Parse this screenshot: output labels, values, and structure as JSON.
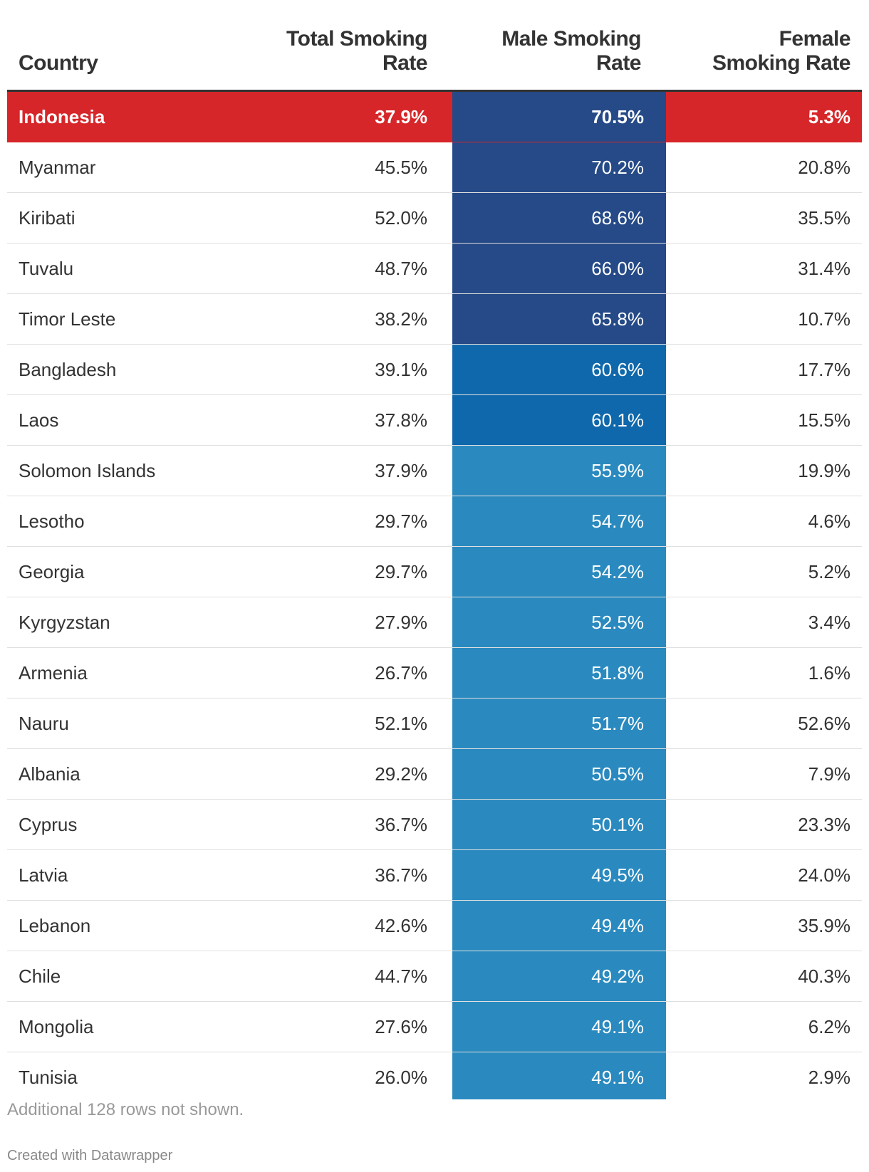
{
  "chart_data": {
    "type": "table",
    "columns": [
      "Country",
      "Total Smoking Rate",
      "Male Smoking Rate",
      "Female Smoking Rate"
    ],
    "header_lines": {
      "country": [
        "Country"
      ],
      "total": [
        "Total Smoking",
        "Rate"
      ],
      "male": [
        "Male Smoking",
        "Rate"
      ],
      "female": [
        "Female",
        "Smoking Rate"
      ]
    },
    "rows": [
      {
        "country": "Indonesia",
        "total": "37.9%",
        "male": "70.5%",
        "female": "5.3%",
        "male_value": 70.5,
        "highlight": true
      },
      {
        "country": "Myanmar",
        "total": "45.5%",
        "male": "70.2%",
        "female": "20.8%",
        "male_value": 70.2
      },
      {
        "country": "Kiribati",
        "total": "52.0%",
        "male": "68.6%",
        "female": "35.5%",
        "male_value": 68.6
      },
      {
        "country": "Tuvalu",
        "total": "48.7%",
        "male": "66.0%",
        "female": "31.4%",
        "male_value": 66.0
      },
      {
        "country": "Timor Leste",
        "total": "38.2%",
        "male": "65.8%",
        "female": "10.7%",
        "male_value": 65.8
      },
      {
        "country": "Bangladesh",
        "total": "39.1%",
        "male": "60.6%",
        "female": "17.7%",
        "male_value": 60.6
      },
      {
        "country": "Laos",
        "total": "37.8%",
        "male": "60.1%",
        "female": "15.5%",
        "male_value": 60.1
      },
      {
        "country": "Solomon Islands",
        "total": "37.9%",
        "male": "55.9%",
        "female": "19.9%",
        "male_value": 55.9
      },
      {
        "country": "Lesotho",
        "total": "29.7%",
        "male": "54.7%",
        "female": "4.6%",
        "male_value": 54.7
      },
      {
        "country": "Georgia",
        "total": "29.7%",
        "male": "54.2%",
        "female": "5.2%",
        "male_value": 54.2
      },
      {
        "country": "Kyrgyzstan",
        "total": "27.9%",
        "male": "52.5%",
        "female": "3.4%",
        "male_value": 52.5
      },
      {
        "country": "Armenia",
        "total": "26.7%",
        "male": "51.8%",
        "female": "1.6%",
        "male_value": 51.8
      },
      {
        "country": "Nauru",
        "total": "52.1%",
        "male": "51.7%",
        "female": "52.6%",
        "male_value": 51.7
      },
      {
        "country": "Albania",
        "total": "29.2%",
        "male": "50.5%",
        "female": "7.9%",
        "male_value": 50.5
      },
      {
        "country": "Cyprus",
        "total": "36.7%",
        "male": "50.1%",
        "female": "23.3%",
        "male_value": 50.1
      },
      {
        "country": "Latvia",
        "total": "36.7%",
        "male": "49.5%",
        "female": "24.0%",
        "male_value": 49.5
      },
      {
        "country": "Lebanon",
        "total": "42.6%",
        "male": "49.4%",
        "female": "35.9%",
        "male_value": 49.4
      },
      {
        "country": "Chile",
        "total": "44.7%",
        "male": "49.2%",
        "female": "40.3%",
        "male_value": 49.2
      },
      {
        "country": "Mongolia",
        "total": "27.6%",
        "male": "49.1%",
        "female": "6.2%",
        "male_value": 49.1
      },
      {
        "country": "Tunisia",
        "total": "26.0%",
        "male": "49.1%",
        "female": "2.9%",
        "male_value": 49.1
      }
    ],
    "highlight_color": "#d72629",
    "male_colors": {
      "dark": "#254a87",
      "mid": "#0f68ab",
      "light": "#2a8abf"
    },
    "footnote": "Additional 128 rows not shown.",
    "credit": "Created with Datawrapper"
  }
}
